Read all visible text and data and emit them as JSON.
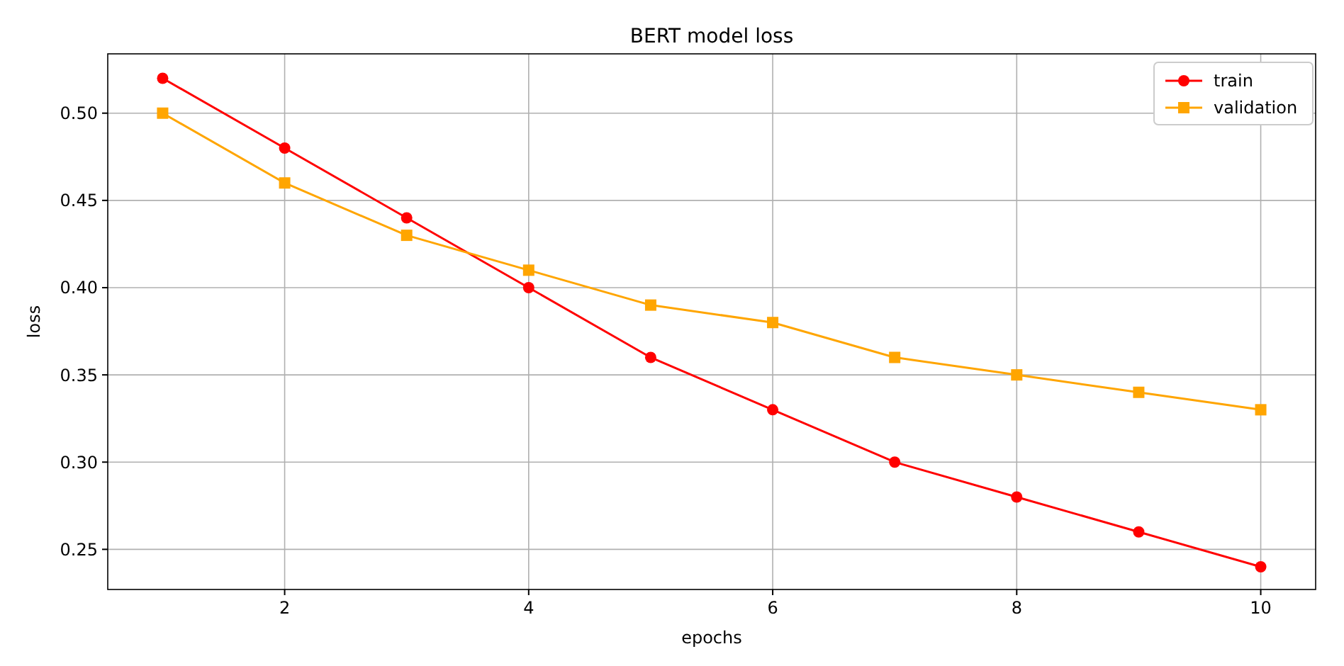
{
  "chart_data": {
    "type": "line",
    "title": "BERT model loss",
    "xlabel": "epochs",
    "ylabel": "loss",
    "x": [
      1,
      2,
      3,
      4,
      5,
      6,
      7,
      8,
      9,
      10
    ],
    "series": [
      {
        "name": "train",
        "color": "#ff0000",
        "marker": "circle",
        "values": [
          0.52,
          0.48,
          0.44,
          0.4,
          0.36,
          0.33,
          0.3,
          0.28,
          0.26,
          0.24
        ]
      },
      {
        "name": "validation",
        "color": "#ffa500",
        "marker": "square",
        "values": [
          0.5,
          0.46,
          0.43,
          0.41,
          0.39,
          0.38,
          0.36,
          0.35,
          0.34,
          0.33
        ]
      }
    ],
    "xlim": [
      0.55,
      10.45
    ],
    "xticks": [
      2,
      4,
      6,
      8,
      10
    ],
    "ylim": [
      0.227,
      0.534
    ],
    "yticks": [
      {
        "value": 0.25,
        "label": "0.25"
      },
      {
        "value": 0.3,
        "label": "0.30"
      },
      {
        "value": 0.35,
        "label": "0.35"
      },
      {
        "value": 0.4,
        "label": "0.40"
      },
      {
        "value": 0.45,
        "label": "0.45"
      },
      {
        "value": 0.5,
        "label": "0.50"
      }
    ],
    "grid": true,
    "legend": "top right"
  }
}
